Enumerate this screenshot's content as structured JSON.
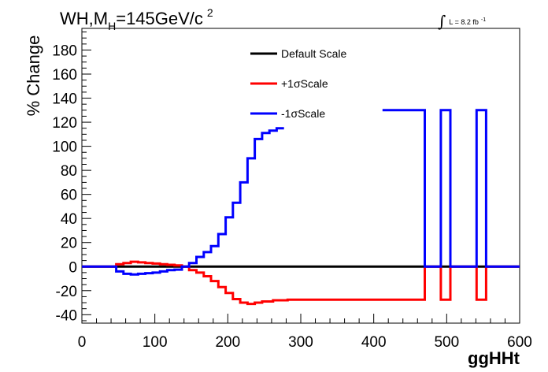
{
  "chart_data": {
    "type": "line",
    "title": {
      "main": "WH,M",
      "subscript": "H",
      "rest": "=145GeV/c",
      "superscript": "2"
    },
    "luminosity": {
      "symbol": "∫",
      "text": "L = 8.2 fb",
      "superscript": "-1"
    },
    "xlabel": "ggHHt",
    "ylabel": "% Change",
    "xlim": [
      0,
      600
    ],
    "ylim": [
      -47,
      198
    ],
    "x_ticks": [
      0,
      100,
      200,
      300,
      400,
      500,
      600
    ],
    "y_ticks": [
      -40,
      -20,
      0,
      20,
      40,
      60,
      80,
      100,
      120,
      140,
      160,
      180
    ],
    "grid": false,
    "legend_position": "top-center",
    "series": [
      {
        "name": "Default Scale",
        "color": "#000000",
        "step": true,
        "points": [
          [
            0,
            0
          ],
          [
            600,
            0
          ]
        ]
      },
      {
        "name": "+1σScale",
        "color": "#ff0000",
        "step": true,
        "points": [
          [
            0,
            0
          ],
          [
            47,
            0
          ],
          [
            47,
            2
          ],
          [
            57,
            2
          ],
          [
            57,
            3
          ],
          [
            67,
            3
          ],
          [
            67,
            4
          ],
          [
            77,
            4
          ],
          [
            77,
            3.5
          ],
          [
            87,
            3.5
          ],
          [
            87,
            3
          ],
          [
            97,
            3
          ],
          [
            97,
            2.5
          ],
          [
            107,
            2.5
          ],
          [
            107,
            2
          ],
          [
            117,
            2
          ],
          [
            117,
            1.5
          ],
          [
            127,
            1.5
          ],
          [
            127,
            1
          ],
          [
            137,
            1
          ],
          [
            137,
            0
          ],
          [
            147,
            0
          ],
          [
            147,
            -3
          ],
          [
            157,
            -3
          ],
          [
            157,
            -5
          ],
          [
            167,
            -5
          ],
          [
            167,
            -8
          ],
          [
            177,
            -8
          ],
          [
            177,
            -12
          ],
          [
            187,
            -12
          ],
          [
            187,
            -17
          ],
          [
            197,
            -17
          ],
          [
            197,
            -22
          ],
          [
            207,
            -22
          ],
          [
            207,
            -27
          ],
          [
            217,
            -27
          ],
          [
            217,
            -30
          ],
          [
            227,
            -30
          ],
          [
            227,
            -31
          ],
          [
            237,
            -31
          ],
          [
            237,
            -30
          ],
          [
            247,
            -30
          ],
          [
            247,
            -29
          ],
          [
            262,
            -29
          ],
          [
            262,
            -28
          ],
          [
            282,
            -28
          ],
          [
            282,
            -27.5
          ],
          [
            470,
            -27.5
          ],
          [
            470,
            0
          ],
          [
            492,
            0
          ],
          [
            492,
            -27.5
          ],
          [
            505,
            -27.5
          ],
          [
            505,
            0
          ],
          [
            541,
            0
          ],
          [
            541,
            -27.5
          ],
          [
            554,
            -27.5
          ],
          [
            554,
            0
          ],
          [
            600,
            0
          ]
        ]
      },
      {
        "name": "-1σScale",
        "color": "#0000ff",
        "step": true,
        "points": [
          [
            0,
            0
          ],
          [
            47,
            0
          ],
          [
            47,
            -4
          ],
          [
            57,
            -4
          ],
          [
            57,
            -6
          ],
          [
            67,
            -6
          ],
          [
            67,
            -6.5
          ],
          [
            77,
            -6.5
          ],
          [
            77,
            -6
          ],
          [
            87,
            -6
          ],
          [
            87,
            -5.5
          ],
          [
            97,
            -5.5
          ],
          [
            97,
            -5
          ],
          [
            107,
            -5
          ],
          [
            107,
            -4
          ],
          [
            117,
            -4
          ],
          [
            117,
            -3
          ],
          [
            127,
            -3
          ],
          [
            127,
            -2.5
          ],
          [
            137,
            -2.5
          ],
          [
            137,
            0
          ],
          [
            147,
            0
          ],
          [
            147,
            3
          ],
          [
            157,
            3
          ],
          [
            157,
            8
          ],
          [
            167,
            8
          ],
          [
            167,
            12
          ],
          [
            177,
            12
          ],
          [
            177,
            17
          ],
          [
            187,
            17
          ],
          [
            187,
            27
          ],
          [
            197,
            27
          ],
          [
            197,
            41
          ],
          [
            207,
            41
          ],
          [
            207,
            53
          ],
          [
            217,
            53
          ],
          [
            217,
            70
          ],
          [
            227,
            70
          ],
          [
            227,
            90
          ],
          [
            237,
            90
          ],
          [
            237,
            106
          ],
          [
            247,
            106
          ],
          [
            247,
            111
          ],
          [
            257,
            111
          ],
          [
            257,
            113
          ],
          [
            267,
            113
          ],
          [
            267,
            115
          ],
          [
            277,
            115
          ]
        ],
        "extra_segments": [
          [
            [
              412,
              130
            ],
            [
              470,
              130
            ],
            [
              470,
              0
            ],
            [
              492,
              0
            ],
            [
              492,
              130
            ],
            [
              505,
              130
            ],
            [
              505,
              0
            ],
            [
              541,
              0
            ],
            [
              541,
              130
            ],
            [
              554,
              130
            ],
            [
              554,
              0
            ],
            [
              600,
              0
            ]
          ]
        ]
      }
    ]
  }
}
